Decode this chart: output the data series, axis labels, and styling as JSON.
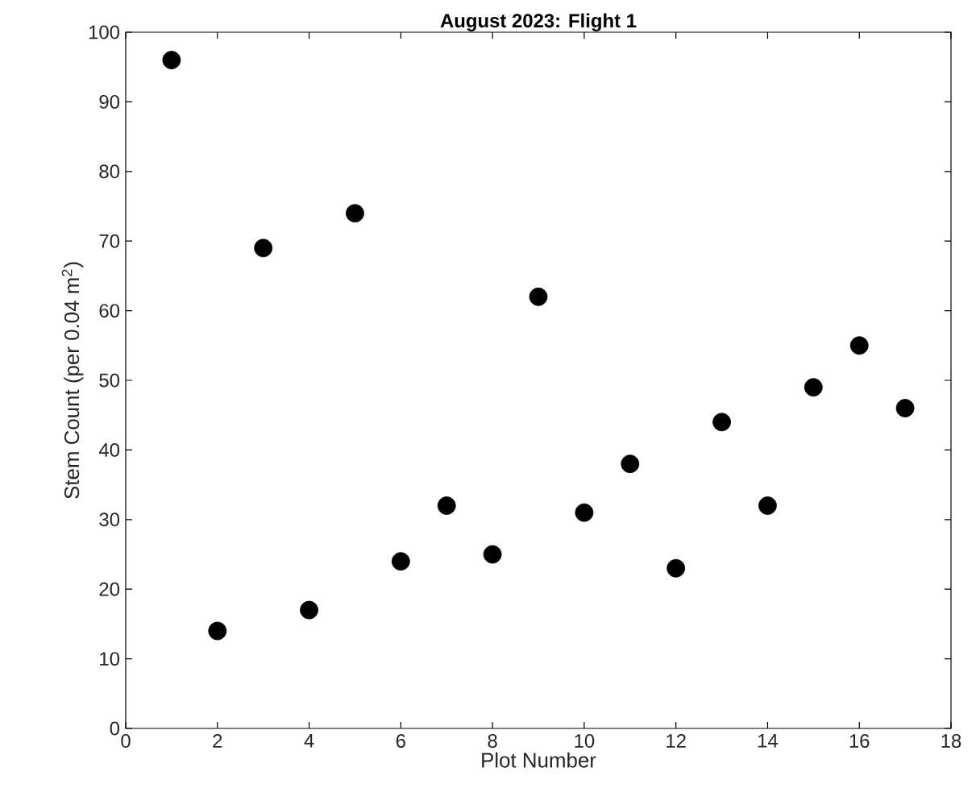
{
  "chart_data": {
    "type": "scatter",
    "title": "**August 2023: Flight 1**",
    "xlabel": "Plot Number",
    "ylabel": "Stem Count (per 0.04 m$^{2}$)",
    "x": [
      1,
      2,
      3,
      4,
      5,
      6,
      7,
      8,
      9,
      10,
      11,
      12,
      13,
      14,
      15,
      16,
      17
    ],
    "values": [
      96,
      14,
      69,
      17,
      74,
      24,
      32,
      25,
      62,
      31,
      38,
      23,
      44,
      32,
      49,
      55,
      46
    ],
    "color": "#000000",
    "marker": "circle",
    "xlim": [
      0,
      18
    ],
    "xticks": [
      0,
      2,
      4,
      6,
      8,
      10,
      12,
      14,
      16,
      18
    ],
    "ylim": [
      0,
      100
    ],
    "yticks": [
      0,
      10,
      20,
      30,
      40,
      50,
      60,
      70,
      80,
      90,
      100
    ]
  }
}
